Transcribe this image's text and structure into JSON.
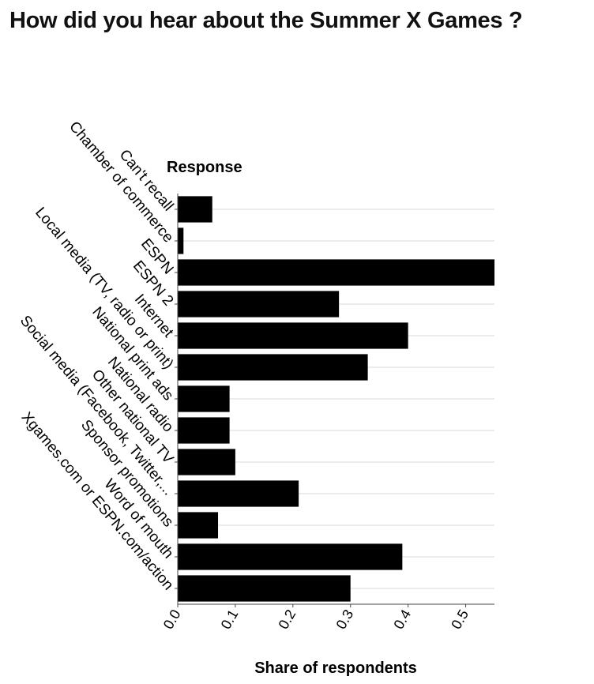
{
  "chart_data": {
    "type": "bar",
    "orientation": "horizontal",
    "title": "How did you hear about the Summer X Games ?",
    "ylabel": "Response",
    "xlabel": "Share of respondents",
    "categories": [
      "Can't recall",
      "Chamber of commerce",
      "ESPN",
      "ESPN 2",
      "Internet",
      "Local media (TV, radio or print)",
      "National print ads",
      "National radio",
      "Other national TV",
      "Social media (Facebook, Twitter,...",
      "Sponsor promotions",
      "Word of mouth",
      "Xgames.com or ESPN.com/action"
    ],
    "values": [
      0.06,
      0.01,
      0.55,
      0.28,
      0.4,
      0.33,
      0.09,
      0.09,
      0.1,
      0.21,
      0.07,
      0.39,
      0.3
    ],
    "xlim": [
      0,
      0.55
    ],
    "xticks": [
      "0.0",
      "0.1",
      "0.2",
      "0.3",
      "0.4",
      "0.5"
    ],
    "grid": true,
    "bar_color": "#000000",
    "grid_color": "#d9d9d9"
  }
}
